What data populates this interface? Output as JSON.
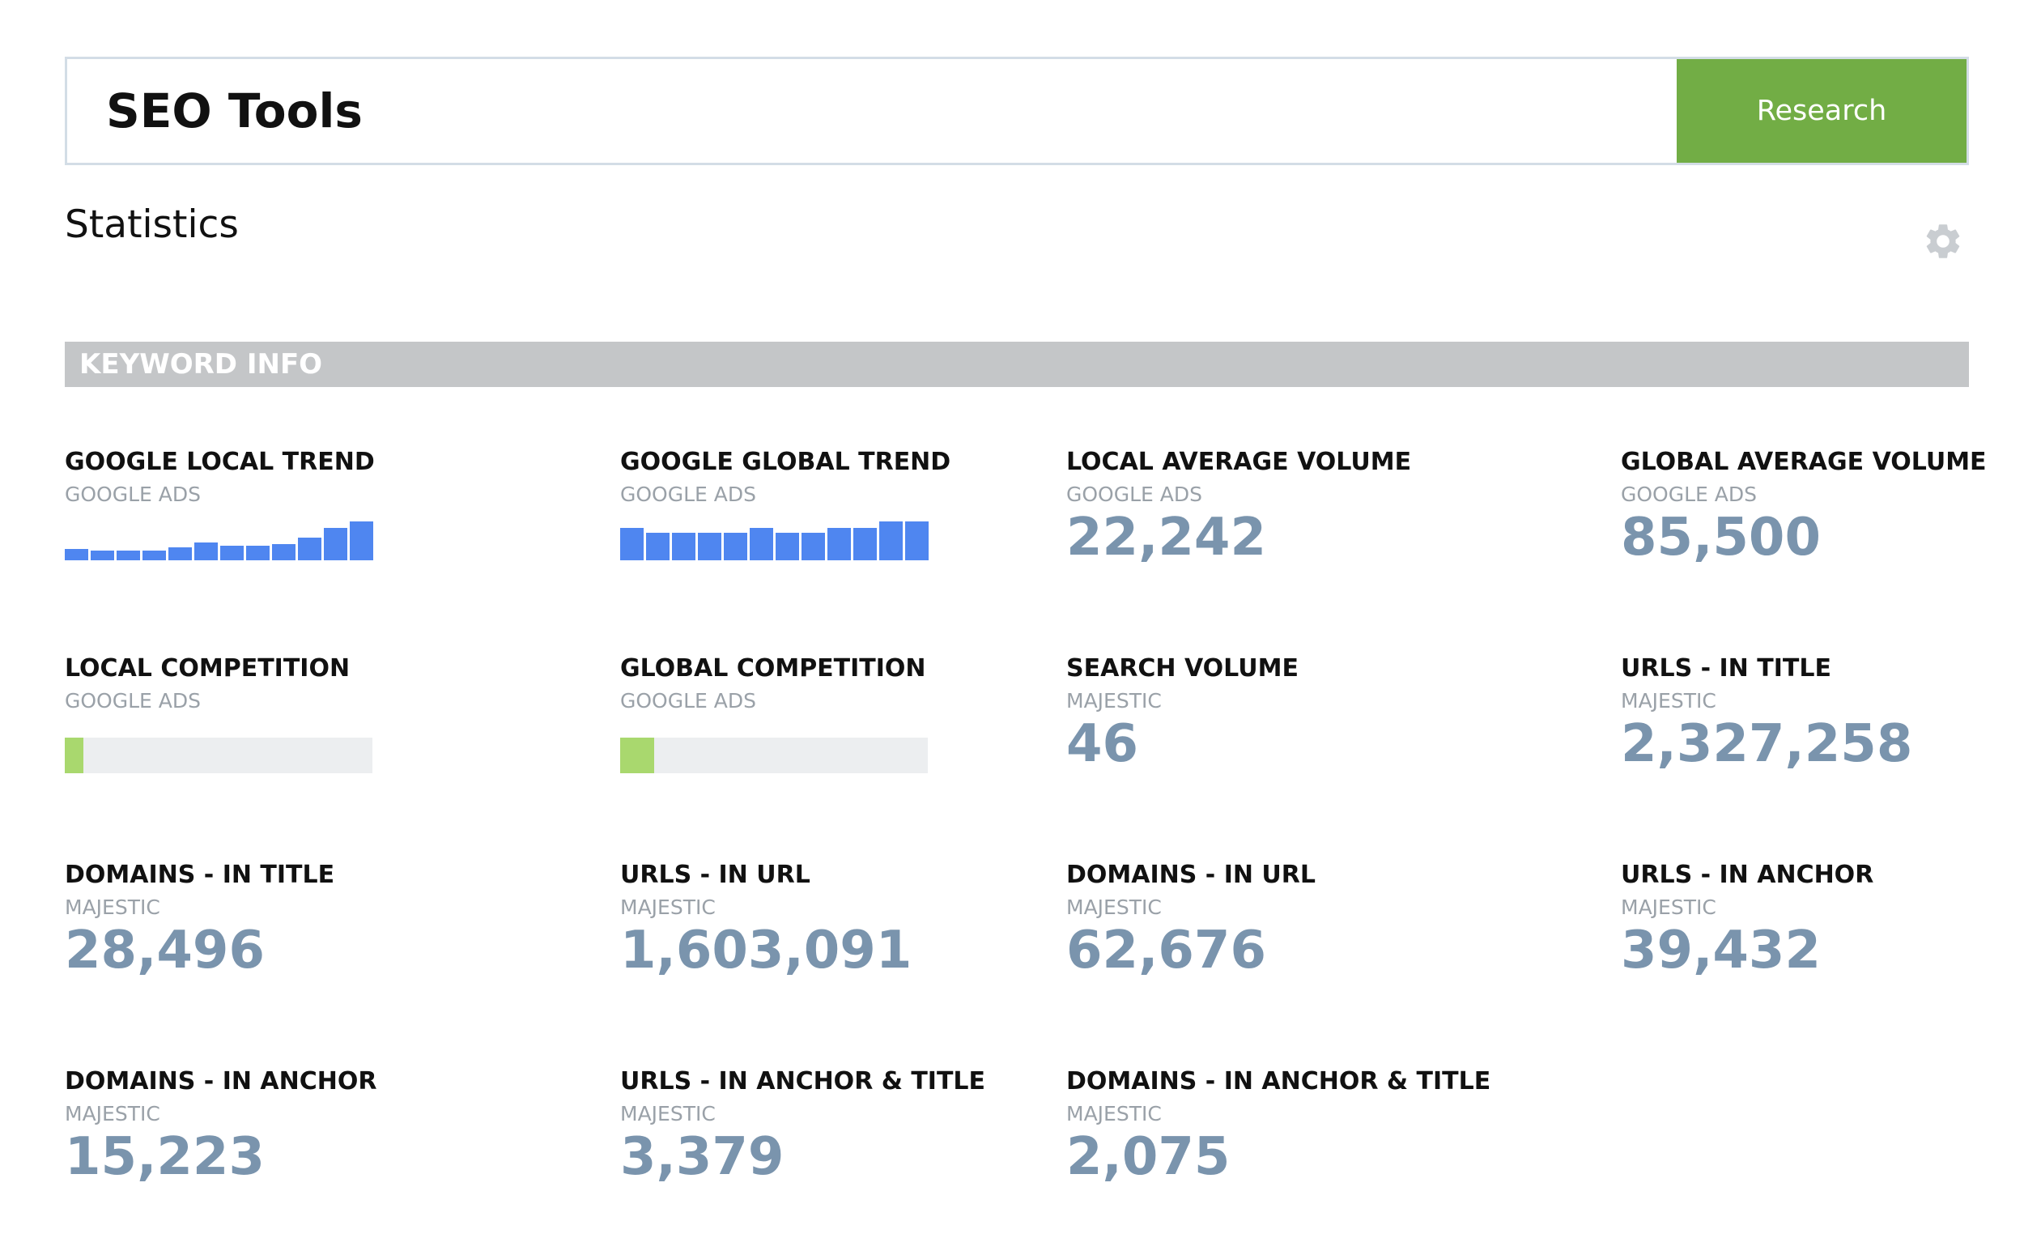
{
  "search": {
    "value": "SEO Tools",
    "button_label": "Research"
  },
  "header": {
    "title": "Statistics"
  },
  "section": {
    "title": "KEYWORD INFO"
  },
  "colors": {
    "accent": "#72ad45",
    "trend_bar": "#4f86f0",
    "competition_fill": "#a9d86e",
    "value": "#7a94ad"
  },
  "cards": {
    "google_local_trend": {
      "title": "GOOGLE LOCAL TREND",
      "source": "GOOGLE ADS",
      "trend": [
        14,
        12,
        12,
        12,
        16,
        22,
        18,
        18,
        20,
        28,
        40,
        48
      ]
    },
    "google_global_trend": {
      "title": "GOOGLE GLOBAL TREND",
      "source": "GOOGLE ADS",
      "trend": [
        40,
        34,
        34,
        34,
        34,
        40,
        34,
        34,
        40,
        40,
        48,
        48
      ]
    },
    "local_avg_volume": {
      "title": "LOCAL AVERAGE VOLUME",
      "source": "GOOGLE ADS",
      "value": "22,242"
    },
    "global_avg_volume": {
      "title": "GLOBAL AVERAGE VOLUME",
      "source": "GOOGLE ADS",
      "value": "85,500"
    },
    "local_competition": {
      "title": "LOCAL COMPETITION",
      "source": "GOOGLE ADS",
      "level": 0.06
    },
    "global_competition": {
      "title": "GLOBAL COMPETITION",
      "source": "GOOGLE ADS",
      "level": 0.11
    },
    "search_volume": {
      "title": "SEARCH VOLUME",
      "source": "MAJESTIC",
      "value": "46"
    },
    "urls_in_title": {
      "title": "URLS - IN TITLE",
      "source": "MAJESTIC",
      "value": "2,327,258"
    },
    "domains_in_title": {
      "title": "DOMAINS - IN TITLE",
      "source": "MAJESTIC",
      "value": "28,496"
    },
    "urls_in_url": {
      "title": "URLS - IN URL",
      "source": "MAJESTIC",
      "value": "1,603,091"
    },
    "domains_in_url": {
      "title": "DOMAINS - IN URL",
      "source": "MAJESTIC",
      "value": "62,676"
    },
    "urls_in_anchor": {
      "title": "URLS - IN ANCHOR",
      "source": "MAJESTIC",
      "value": "39,432"
    },
    "domains_in_anchor": {
      "title": "DOMAINS - IN ANCHOR",
      "source": "MAJESTIC",
      "value": "15,223"
    },
    "urls_in_anchor_title": {
      "title": "URLS - IN ANCHOR & TITLE",
      "source": "MAJESTIC",
      "value": "3,379"
    },
    "domains_in_anchor_title": {
      "title": "DOMAINS - IN ANCHOR & TITLE",
      "source": "MAJESTIC",
      "value": "2,075"
    }
  }
}
